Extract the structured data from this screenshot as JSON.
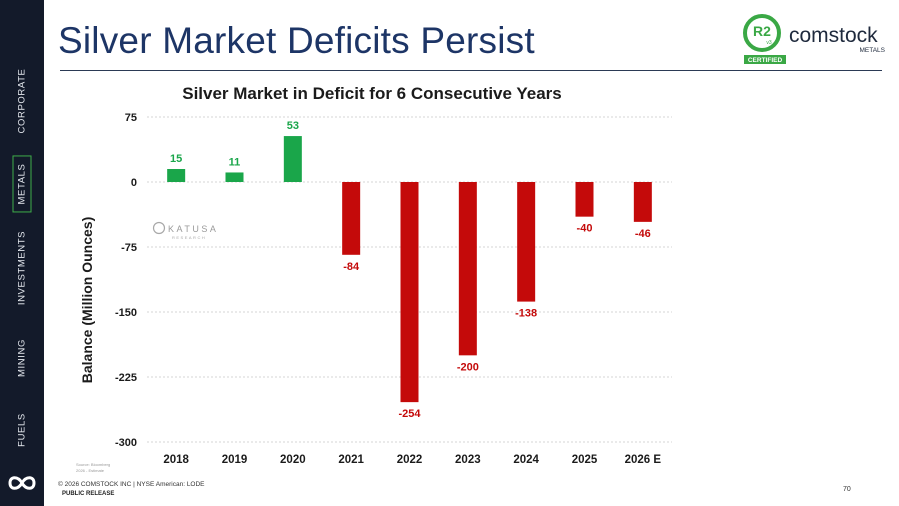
{
  "nav": {
    "items": [
      {
        "label": "CORPORATE",
        "active": false
      },
      {
        "label": "METALS",
        "active": true
      },
      {
        "label": "INVESTMENTS",
        "active": false
      },
      {
        "label": "MINING",
        "active": false
      },
      {
        "label": "FUELS",
        "active": false
      }
    ]
  },
  "header": {
    "title": "Silver Market Deficits Persist"
  },
  "logo": {
    "badge": "R2",
    "badge_sub": "v3",
    "certified": "CERTIFIED",
    "brand": "comstock",
    "sub": "METALS"
  },
  "watermark": {
    "text": "KATUSA",
    "sub": "RESEARCH"
  },
  "source_note": {
    "line1": "Source: Bloomberg",
    "line2": "2026 - Estimate"
  },
  "footer": {
    "copyright": "© 2026 COMSTOCK INC | NYSE American: LODE",
    "release": "PUBLIC RELEASE",
    "page_number": "70"
  },
  "colors": {
    "surplus": "#1aa64a",
    "deficit": "#c40a0a",
    "nav_bg": "#131a2a",
    "title": "#1d3566",
    "active_border": "#3fae49"
  },
  "chart_data": {
    "type": "bar",
    "title": "Silver Market in Deficit for 6 Consecutive Years",
    "ylabel": "Balance (Million Ounces)",
    "xlabel": "",
    "categories": [
      "2018",
      "2019",
      "2020",
      "2021",
      "2022",
      "2023",
      "2024",
      "2025",
      "2026 E"
    ],
    "values": [
      15,
      11,
      53,
      -84,
      -254,
      -200,
      -138,
      -40,
      -46
    ],
    "data_labels": [
      "15",
      "11",
      "53",
      "-84",
      "-254",
      "-200",
      "-138",
      "-40",
      "-46"
    ],
    "yticks": [
      "75",
      "0",
      "-75",
      "-150",
      "-225",
      "-300"
    ],
    "ylim": [
      -300,
      75
    ],
    "grid": true
  }
}
